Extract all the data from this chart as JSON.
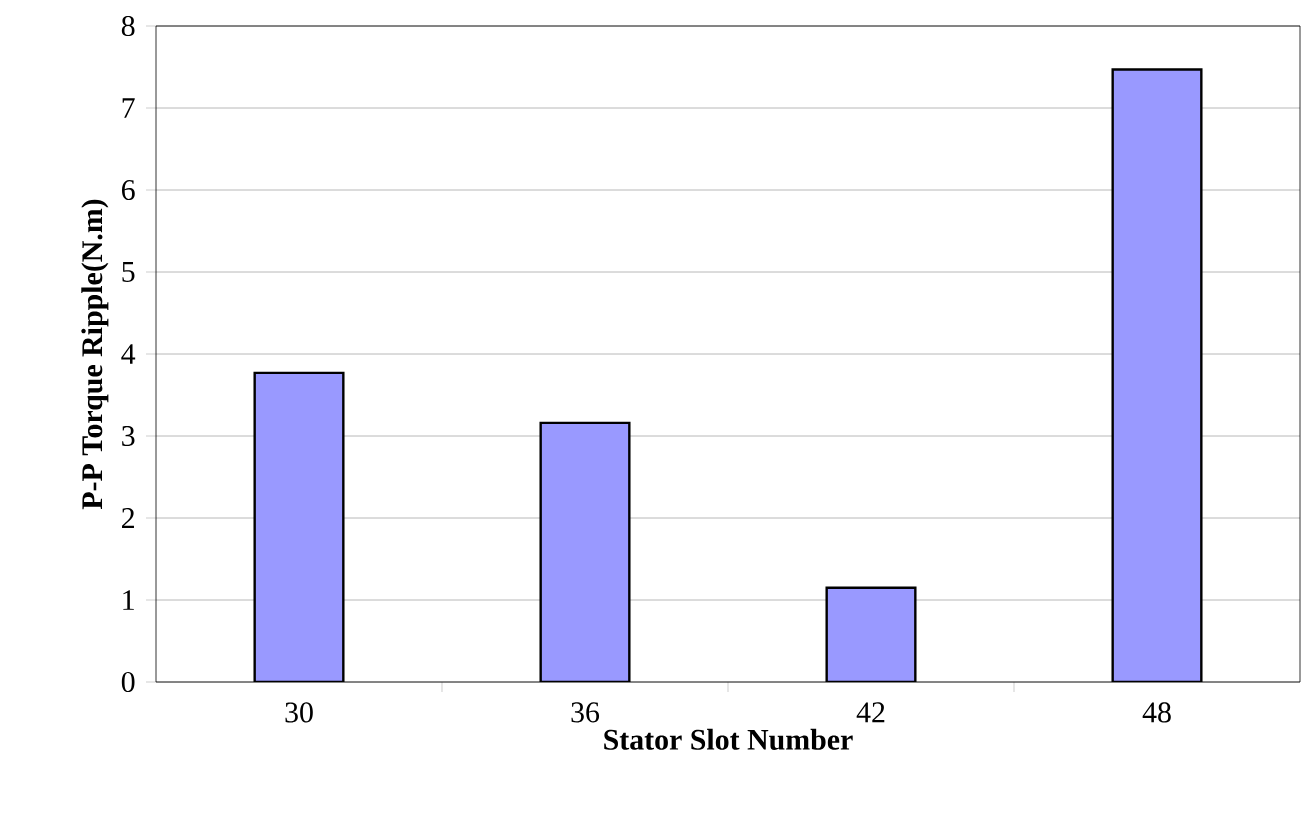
{
  "chart_data": {
    "type": "bar",
    "xlabel": "Stator Slot Number",
    "ylabel": "P-P Torque Ripple(N.m)",
    "categories": [
      "30",
      "36",
      "42",
      "48"
    ],
    "values": [
      3.77,
      3.16,
      1.15,
      7.47
    ],
    "color": "#9999ff",
    "ylim": [
      0,
      8
    ],
    "yticks": [
      0,
      1,
      2,
      3,
      4,
      5,
      6,
      7,
      8
    ],
    "grid": "y"
  }
}
